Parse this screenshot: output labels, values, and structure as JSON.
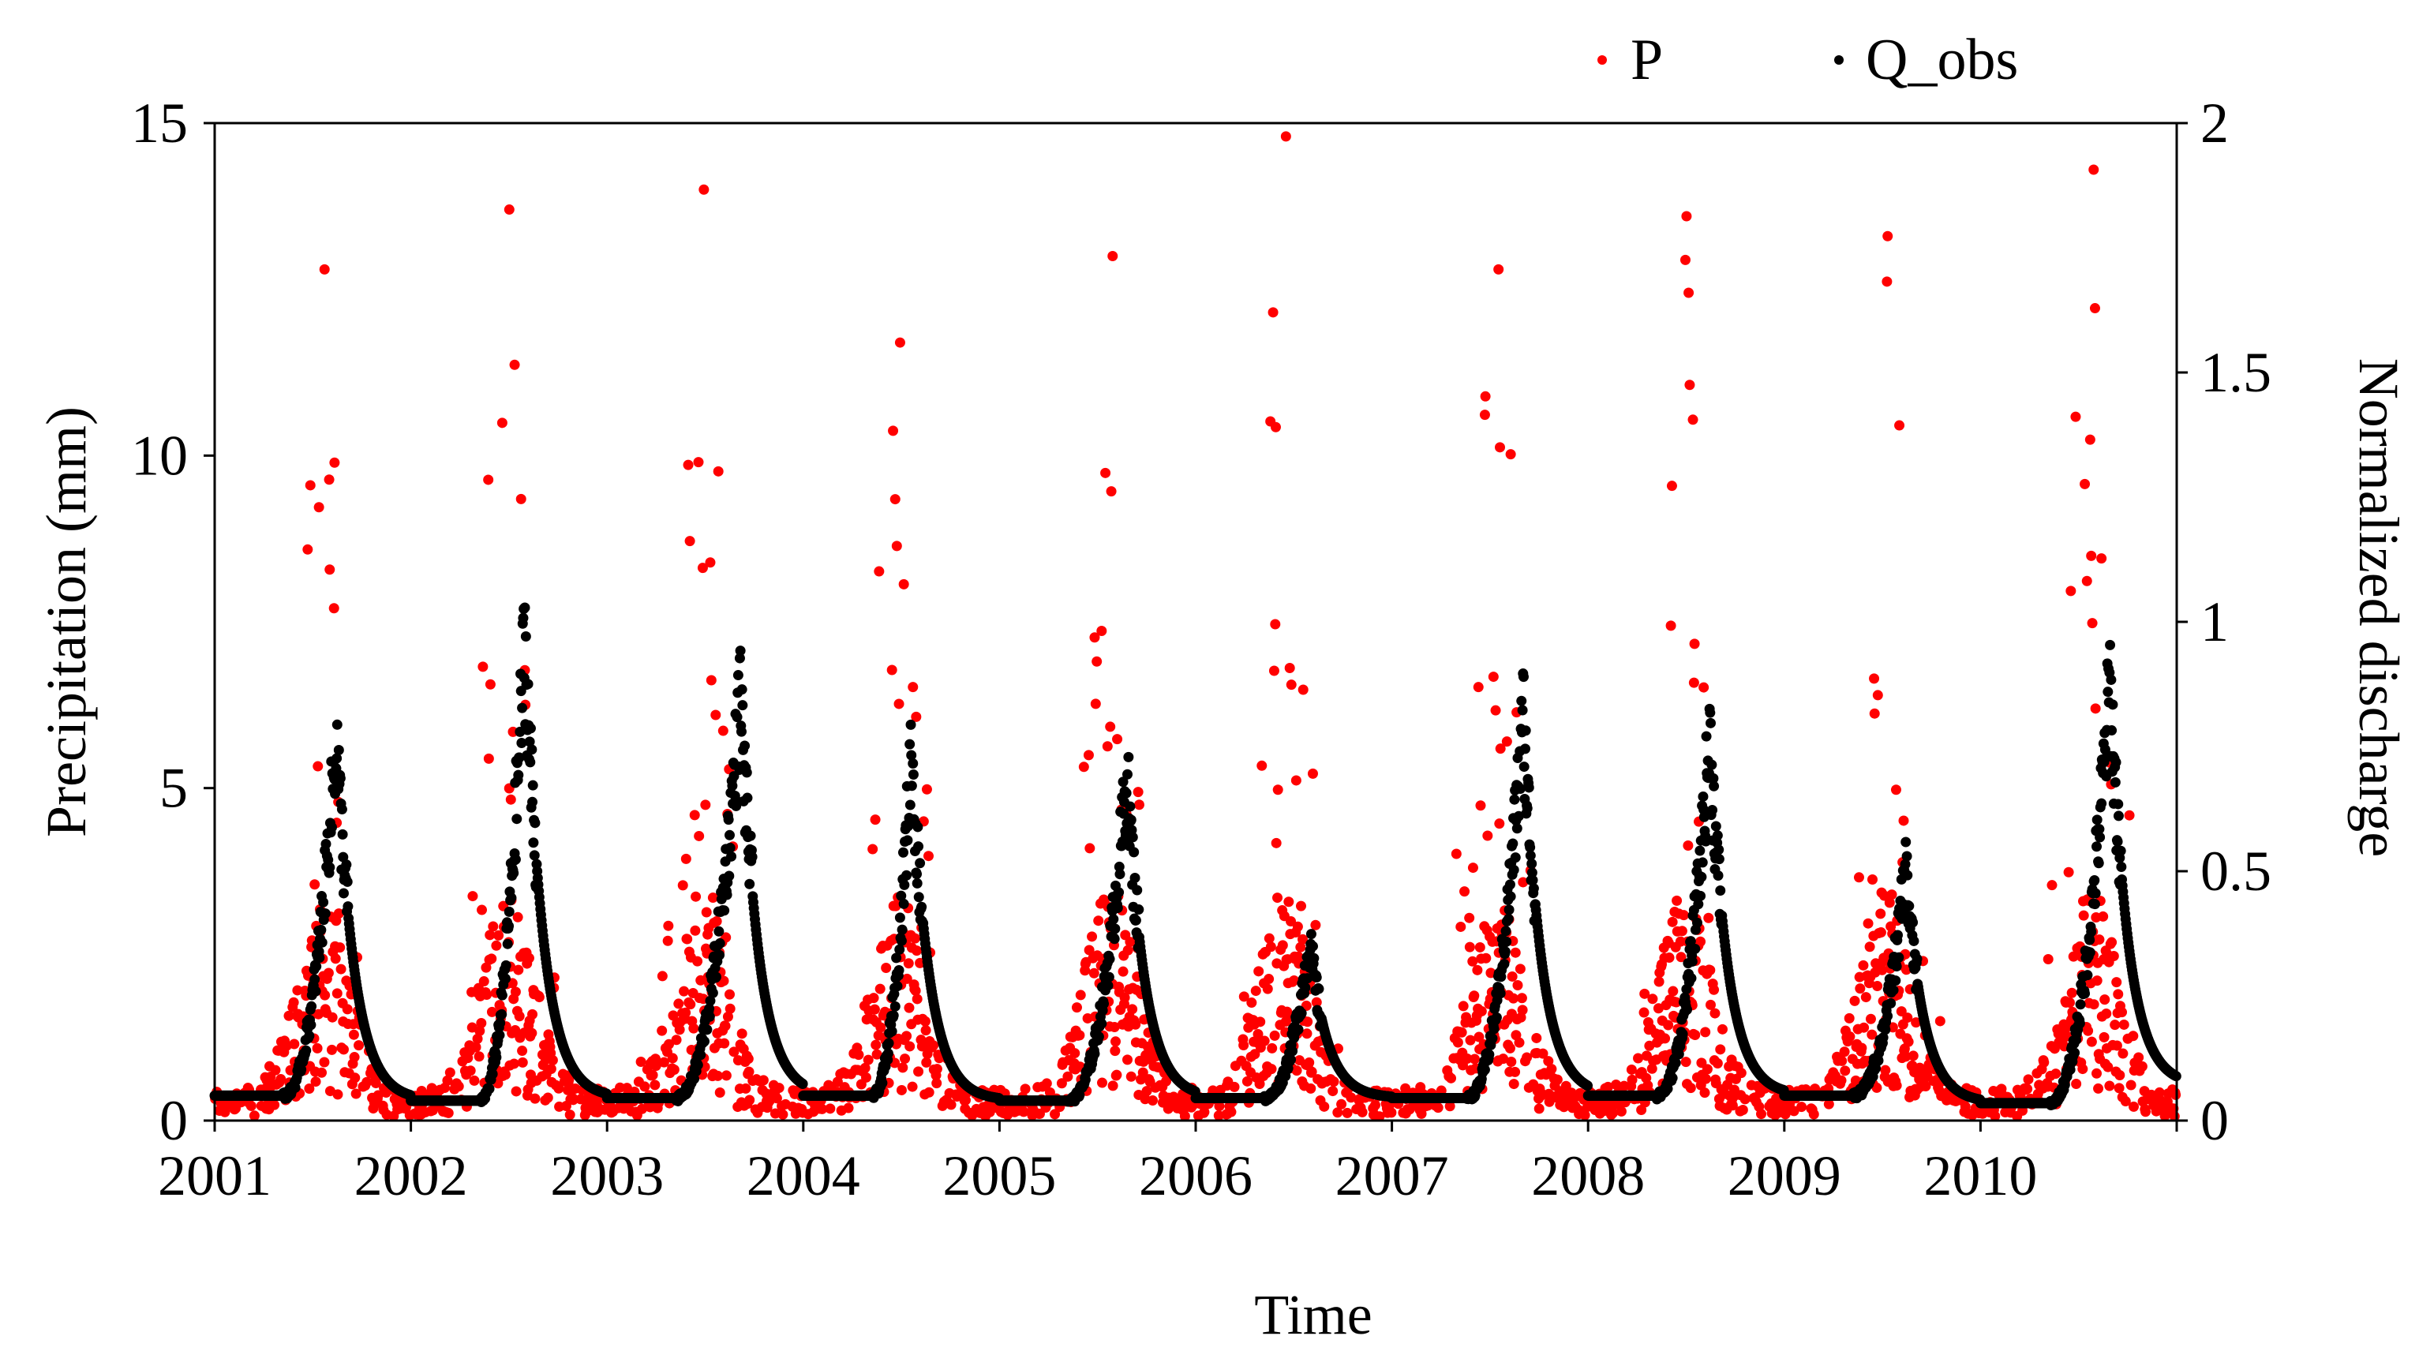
{
  "chart_data": {
    "type": "scatter",
    "title": "",
    "xlabel": "Time",
    "ylabel_left": "Precipitation (mm)",
    "ylabel_right": "Normalized discharge",
    "xlim": [
      2001,
      2011
    ],
    "ylim_left": [
      0,
      15
    ],
    "ylim_right": [
      0,
      2
    ],
    "x_ticks": [
      2001,
      2002,
      2003,
      2004,
      2005,
      2006,
      2007,
      2008,
      2009,
      2010
    ],
    "x_tick_labels": [
      "2001",
      "2002",
      "2003",
      "2004",
      "2005",
      "2006",
      "2007",
      "2008",
      "2009",
      "2010"
    ],
    "y_left_ticks": [
      0,
      5,
      10,
      15
    ],
    "y_left_tick_labels": [
      "0",
      "5",
      "10",
      "15"
    ],
    "y_right_ticks": [
      0,
      0.5,
      1,
      1.5,
      2
    ],
    "y_right_tick_labels": [
      "0",
      "0.5",
      "1",
      "1.5",
      "2"
    ],
    "grid": false,
    "legend_position": "top-right",
    "legend": [
      {
        "name": "P",
        "color": "#ff0000",
        "marker": "dot"
      },
      {
        "name": "Q_obs",
        "color": "#000000",
        "marker": "dot"
      }
    ],
    "series": [
      {
        "name": "P",
        "axis": "left",
        "color": "#ff0000",
        "description": "daily precipitation in mm, seasonal peaks each summer",
        "annual_peak_months": [
          {
            "year": 2001,
            "peak_month": 7.6,
            "peak_value": 12.8
          },
          {
            "year": 2002,
            "peak_month": 6.9,
            "peak_value": 13.7
          },
          {
            "year": 2003,
            "peak_month": 6.8,
            "peak_value": 14.0
          },
          {
            "year": 2004,
            "peak_month": 6.8,
            "peak_value": 11.7
          },
          {
            "year": 2005,
            "peak_month": 7.8,
            "peak_value": 13.0
          },
          {
            "year": 2006,
            "peak_month": 6.4,
            "peak_value": 14.8
          },
          {
            "year": 2007,
            "peak_month": 7.4,
            "peak_value": 12.8
          },
          {
            "year": 2008,
            "peak_month": 6.9,
            "peak_value": 13.6
          },
          {
            "year": 2009,
            "peak_month": 7.2,
            "peak_value": 13.3
          },
          {
            "year": 2010,
            "peak_month": 7.8,
            "peak_value": 14.3
          }
        ],
        "baseline_wet_mm": 2.2,
        "baseline_dry_mm": 0.3
      },
      {
        "name": "Q_obs",
        "axis": "right",
        "color": "#000000",
        "description": "daily normalized observed discharge",
        "annual_cycle": [
          {
            "year": 2001,
            "rise_start": 2001.35,
            "peak_time": 2001.62,
            "peak_value": 0.77,
            "base_value": 0.05,
            "end_value": 0.07
          },
          {
            "year": 2002,
            "rise_start": 2002.35,
            "peak_time": 2002.58,
            "peak_value": 0.97,
            "base_value": 0.04,
            "end_value": 0.05
          },
          {
            "year": 2003,
            "rise_start": 2003.35,
            "peak_time": 2003.68,
            "peak_value": 0.85,
            "base_value": 0.045,
            "end_value": 0.05
          },
          {
            "year": 2004,
            "rise_start": 2004.35,
            "peak_time": 2004.55,
            "peak_value": 0.74,
            "base_value": 0.05,
            "end_value": 0.05
          },
          {
            "year": 2005,
            "rise_start": 2005.35,
            "peak_time": 2005.65,
            "peak_value": 0.69,
            "base_value": 0.04,
            "end_value": 0.045
          },
          {
            "year": 2006,
            "rise_start": 2006.35,
            "peak_time": 2006.58,
            "peak_value": 0.36,
            "base_value": 0.045,
            "end_value": 0.04
          },
          {
            "year": 2007,
            "rise_start": 2007.38,
            "peak_time": 2007.67,
            "peak_value": 0.81,
            "base_value": 0.045,
            "end_value": 0.045
          },
          {
            "year": 2008,
            "rise_start": 2008.35,
            "peak_time": 2008.62,
            "peak_value": 0.77,
            "base_value": 0.05,
            "end_value": 0.05
          },
          {
            "year": 2009,
            "rise_start": 2009.35,
            "peak_time": 2009.62,
            "peak_value": 0.5,
            "base_value": 0.05,
            "end_value": 0.04
          },
          {
            "year": 2010,
            "rise_start": 2010.35,
            "peak_time": 2010.66,
            "peak_value": 0.88,
            "base_value": 0.035,
            "end_value": 0.07
          }
        ]
      }
    ]
  }
}
